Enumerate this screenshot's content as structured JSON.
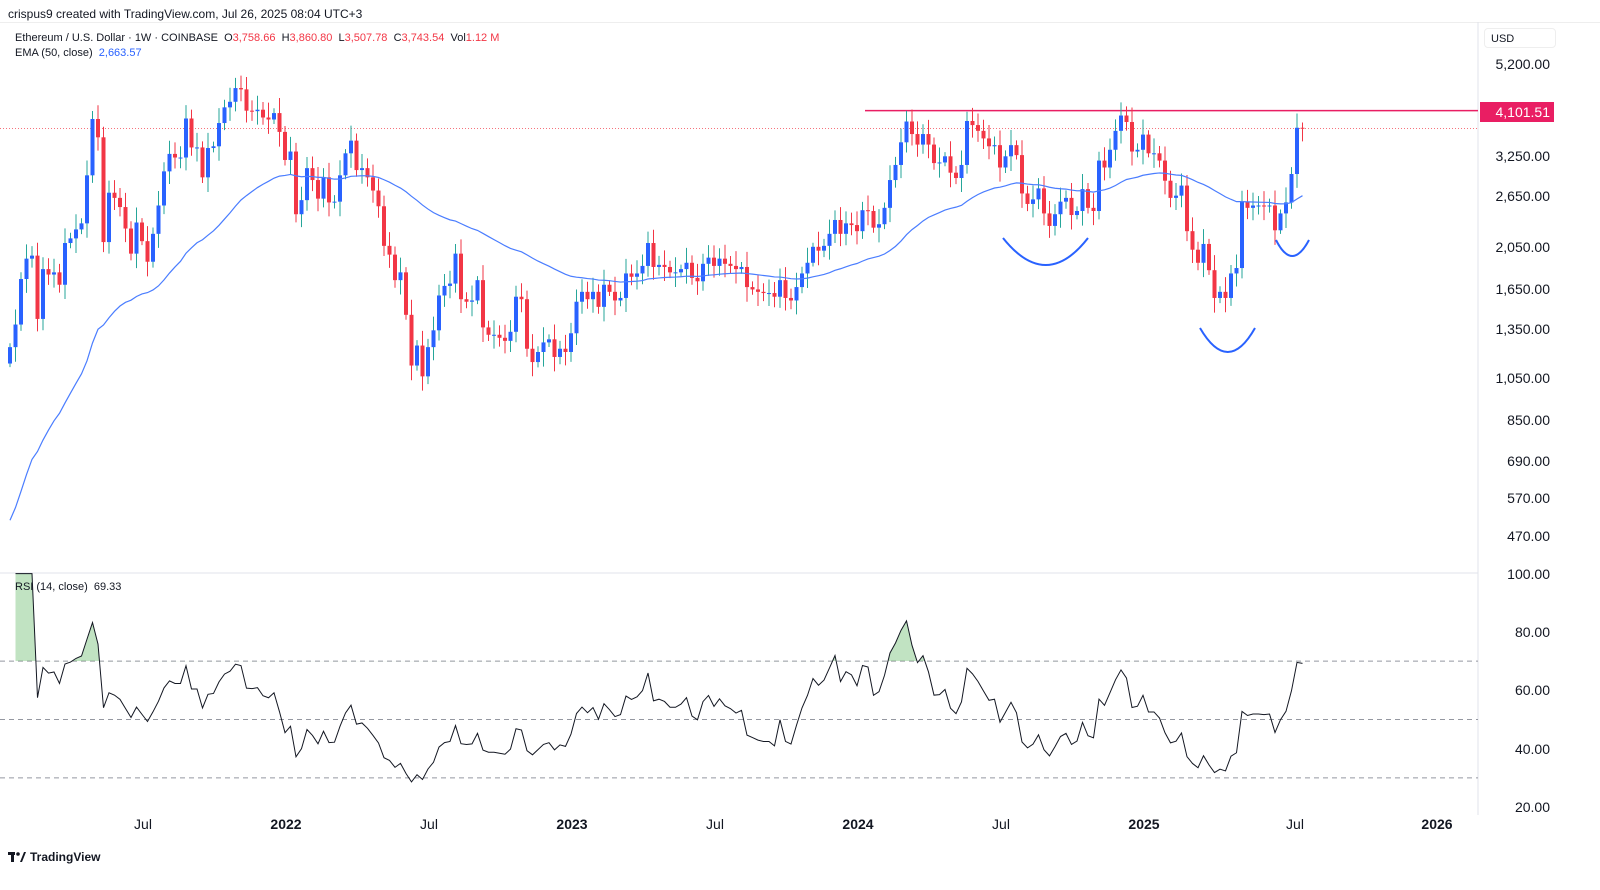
{
  "credit": "crispus9 created with TradingView.com, Jul 26, 2025 08:04 UTC+3",
  "legend": {
    "symbol": "Ethereum / U.S. Dollar · 1W · COINBASE",
    "o_label": "O",
    "open": "3,758.66",
    "h_label": "H",
    "high": "3,860.80",
    "l_label": "L",
    "low": "3,507.78",
    "c_label": "C",
    "close": "3,743.54",
    "vol_label": "Vol",
    "vol": "1.12 M",
    "ema_label": "EMA (50, close)",
    "ema_value": "2,663.57",
    "rsi_label": "RSI (14, close)",
    "rsi_value": "69.33"
  },
  "currency": "USD",
  "resistance_label": "4,101.51",
  "footer": "TradingView",
  "colors": {
    "up_body": "#2962ff",
    "up_wick": "#26a69a",
    "down": "#f23645",
    "ema": "#4a7dff",
    "resistance": "#e91e63",
    "rsi_fill": "#4caf50"
  },
  "chart_data": {
    "type": "candlestick",
    "interval": "1W",
    "yscale": "log",
    "price_ticks": [
      "5,200.00",
      "3,250.00",
      "2,650.00",
      "2,050.00",
      "1,650.00",
      "1,350.00",
      "1,050.00",
      "850.00",
      "690.00",
      "570.00",
      "470.00"
    ],
    "rsi_ticks": [
      "100.00",
      "80.00",
      "60.00",
      "40.00",
      "20.00"
    ],
    "rsi_levels": [
      70,
      50,
      30
    ],
    "time_labels": [
      "Jul",
      "2022",
      "Jul",
      "2023",
      "Jul",
      "2024",
      "Jul",
      "2025",
      "Jul",
      "2026"
    ],
    "resistance": 4101.51,
    "last": {
      "open": 3758.66,
      "high": 3860.8,
      "low": 3507.78,
      "close": 3743.54
    },
    "closes": [
      1230,
      1380,
      1740,
      1930,
      1960,
      1420,
      1830,
      1780,
      1800,
      1690,
      2090,
      2140,
      2240,
      2310,
      2950,
      3930,
      3580,
      2100,
      2700,
      2630,
      2510,
      2250,
      1980,
      2320,
      2110,
      1900,
      2190,
      2530,
      3010,
      3290,
      3230,
      3230,
      3940,
      3400,
      3400,
      2920,
      3390,
      3420,
      3850,
      4170,
      4290,
      4600,
      4570,
      4100,
      4090,
      4120,
      3960,
      3920,
      4050,
      3680,
      3190,
      3330,
      2420,
      2600,
      3060,
      2880,
      2620,
      2920,
      2570,
      2580,
      2950,
      3300,
      3520,
      3030,
      3060,
      2920,
      2730,
      2520,
      2060,
      1970,
      1730,
      1800,
      1450,
      1120,
      1240,
      1060,
      1230,
      1340,
      1600,
      1680,
      1700,
      1980,
      1570,
      1550,
      1560,
      1730,
      1360,
      1310,
      1310,
      1290,
      1270,
      1330,
      1590,
      1570,
      1220,
      1140,
      1200,
      1260,
      1280,
      1170,
      1220,
      1200,
      1320,
      1550,
      1630,
      1570,
      1630,
      1510,
      1690,
      1630,
      1560,
      1580,
      1790,
      1760,
      1790,
      1860,
      2090,
      1850,
      1870,
      1850,
      1800,
      1800,
      1830,
      1890,
      1750,
      1720,
      1880,
      1940,
      1860,
      1930,
      1880,
      1860,
      1830,
      1850,
      1670,
      1650,
      1630,
      1620,
      1620,
      1590,
      1730,
      1580,
      1560,
      1670,
      1790,
      1890,
      2050,
      2010,
      2060,
      2190,
      2350,
      2190,
      2310,
      2290,
      2220,
      2470,
      2460,
      2260,
      2300,
      2500,
      2880,
      3110,
      3490,
      3880,
      3640,
      3450,
      3640,
      3450,
      3140,
      3150,
      3250,
      2990,
      2910,
      3110,
      3890,
      3810,
      3700,
      3560,
      3420,
      3440,
      3070,
      3250,
      3440,
      3270,
      2690,
      2550,
      2610,
      2760,
      2430,
      2280,
      2420,
      2580,
      2630,
      2410,
      2460,
      2750,
      2500,
      2460,
      3180,
      3070,
      3360,
      3700,
      4000,
      3870,
      3330,
      3360,
      3630,
      3300,
      3300,
      3180,
      2870,
      2630,
      2660,
      2800,
      2220,
      2020,
      1890,
      2080,
      1820,
      1580,
      1630,
      1580,
      1790,
      1840,
      2580,
      2500,
      2530,
      2530,
      2520,
      2530,
      2230,
      2430,
      2570,
      2970,
      3758.66,
      3743.54
    ]
  }
}
